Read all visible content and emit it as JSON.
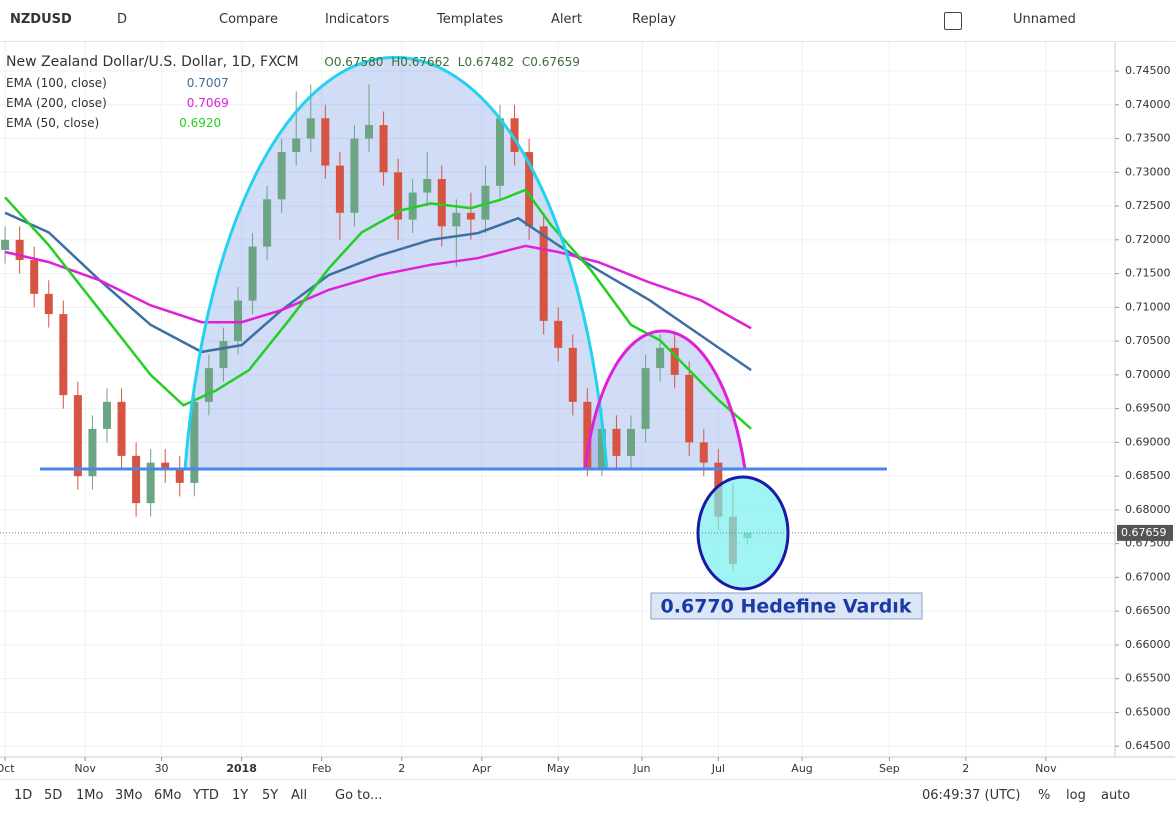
{
  "toolbar": {
    "symbol": "NZDUSD",
    "interval": "D",
    "items": [
      "Compare",
      "Indicators",
      "Templates",
      "Alert",
      "Replay"
    ],
    "layout": "Unnamed"
  },
  "chart_data": {
    "type": "candlestick",
    "title": "New Zealand Dollar/U.S. Dollar, 1D, FXCM",
    "ohlc_labels": [
      "O0.67580",
      "H0.67662",
      "L0.67482",
      "C0.67659"
    ],
    "annotation": "0.6770 Hedefine Vardık",
    "up_color": "#6ba583",
    "down_color": "#d75442",
    "grid": true,
    "xlim": [
      -1.4,
      305
    ],
    "ylim": [
      0.6434,
      0.7493
    ],
    "xticks": [
      {
        "value": 0,
        "label": "Oct"
      },
      {
        "value": 22,
        "label": "Nov"
      },
      {
        "value": 43,
        "label": "30"
      },
      {
        "value": 65,
        "label": "2018"
      },
      {
        "value": 87,
        "label": "Feb"
      },
      {
        "value": 109,
        "label": "2"
      },
      {
        "value": 131,
        "label": "Apr"
      },
      {
        "value": 152,
        "label": "May"
      },
      {
        "value": 175,
        "label": "Jun"
      },
      {
        "value": 196,
        "label": "Jul"
      },
      {
        "value": 219,
        "label": "Aug"
      },
      {
        "value": 243,
        "label": "Sep"
      },
      {
        "value": 264,
        "label": "2"
      },
      {
        "value": 286,
        "label": "Nov"
      }
    ],
    "yticks": [
      {
        "value": 0.645,
        "label": "0.64500"
      },
      {
        "value": 0.65,
        "label": "0.65000"
      },
      {
        "value": 0.655,
        "label": "0.65500"
      },
      {
        "value": 0.66,
        "label": "0.66000"
      },
      {
        "value": 0.665,
        "label": "0.66500"
      },
      {
        "value": 0.67,
        "label": "0.67000"
      },
      {
        "value": 0.675,
        "label": "0.67500"
      },
      {
        "value": 0.68,
        "label": "0.68000"
      },
      {
        "value": 0.685,
        "label": "0.68500"
      },
      {
        "value": 0.69,
        "label": "0.69000"
      },
      {
        "value": 0.695,
        "label": "0.69500"
      },
      {
        "value": 0.7,
        "label": "0.70000"
      },
      {
        "value": 0.705,
        "label": "0.70500"
      },
      {
        "value": 0.71,
        "label": "0.71000"
      },
      {
        "value": 0.715,
        "label": "0.71500"
      },
      {
        "value": 0.72,
        "label": "0.72000"
      },
      {
        "value": 0.725,
        "label": "0.72500"
      },
      {
        "value": 0.73,
        "label": "0.73000"
      },
      {
        "value": 0.735,
        "label": "0.73500"
      },
      {
        "value": 0.74,
        "label": "0.74000"
      },
      {
        "value": 0.745,
        "label": "0.74500"
      }
    ],
    "last_price": {
      "value": 0.67659,
      "label": "0.67659"
    },
    "x": [
      0,
      4,
      8,
      12,
      16,
      20,
      24,
      28,
      32,
      36,
      40,
      44,
      48,
      52,
      56,
      60,
      64,
      68,
      72,
      76,
      80,
      84,
      88,
      92,
      96,
      100,
      104,
      108,
      112,
      116,
      120,
      124,
      128,
      132,
      136,
      140,
      144,
      148,
      152,
      156,
      160,
      164,
      168,
      172,
      176,
      180,
      184,
      188,
      192,
      196,
      200,
      204
    ],
    "open": [
      0.7185,
      0.72,
      0.717,
      0.712,
      0.709,
      0.697,
      0.685,
      0.692,
      0.696,
      0.688,
      0.681,
      0.687,
      0.686,
      0.684,
      0.696,
      0.701,
      0.705,
      0.711,
      0.719,
      0.726,
      0.733,
      0.735,
      0.738,
      0.731,
      0.724,
      0.735,
      0.737,
      0.73,
      0.723,
      0.727,
      0.729,
      0.722,
      0.724,
      0.723,
      0.728,
      0.738,
      0.733,
      0.722,
      0.708,
      0.704,
      0.696,
      0.686,
      0.692,
      0.688,
      0.692,
      0.701,
      0.704,
      0.7,
      0.69,
      0.687,
      0.679,
      0.6758
    ],
    "high": [
      0.722,
      0.722,
      0.719,
      0.714,
      0.711,
      0.699,
      0.694,
      0.698,
      0.698,
      0.69,
      0.689,
      0.689,
      0.688,
      0.698,
      0.703,
      0.707,
      0.713,
      0.721,
      0.728,
      0.735,
      0.742,
      0.743,
      0.74,
      0.733,
      0.737,
      0.743,
      0.739,
      0.732,
      0.729,
      0.733,
      0.731,
      0.726,
      0.727,
      0.731,
      0.74,
      0.74,
      0.735,
      0.724,
      0.71,
      0.706,
      0.698,
      0.695,
      0.694,
      0.694,
      0.703,
      0.706,
      0.706,
      0.702,
      0.692,
      0.689,
      0.684,
      0.67662
    ],
    "low": [
      0.7165,
      0.715,
      0.71,
      0.707,
      0.695,
      0.683,
      0.683,
      0.69,
      0.686,
      0.679,
      0.679,
      0.684,
      0.682,
      0.682,
      0.694,
      0.699,
      0.703,
      0.709,
      0.717,
      0.724,
      0.731,
      0.733,
      0.729,
      0.72,
      0.722,
      0.733,
      0.728,
      0.72,
      0.721,
      0.725,
      0.719,
      0.716,
      0.72,
      0.721,
      0.726,
      0.731,
      0.72,
      0.706,
      0.702,
      0.694,
      0.685,
      0.685,
      0.686,
      0.686,
      0.69,
      0.699,
      0.698,
      0.688,
      0.685,
      0.677,
      0.671,
      0.67482
    ],
    "close": [
      0.72,
      0.717,
      0.712,
      0.709,
      0.697,
      0.685,
      0.692,
      0.696,
      0.688,
      0.681,
      0.687,
      0.686,
      0.684,
      0.696,
      0.701,
      0.705,
      0.711,
      0.719,
      0.726,
      0.733,
      0.735,
      0.738,
      0.731,
      0.724,
      0.735,
      0.737,
      0.73,
      0.723,
      0.727,
      0.729,
      0.722,
      0.724,
      0.723,
      0.728,
      0.738,
      0.733,
      0.722,
      0.708,
      0.704,
      0.696,
      0.686,
      0.692,
      0.688,
      0.692,
      0.701,
      0.704,
      0.7,
      0.69,
      0.687,
      0.679,
      0.672,
      0.67659
    ],
    "series": [
      {
        "name": "EMA (100, close)",
        "value_label": "0.7007",
        "color": "#3d6fa0",
        "x": [
          0,
          12,
          26,
          40,
          54,
          65,
          76,
          89,
          103,
          117,
          130,
          141,
          152,
          163,
          177,
          191,
          205
        ],
        "values": [
          0.724,
          0.7211,
          0.714,
          0.7074,
          0.7034,
          0.7044,
          0.7096,
          0.7148,
          0.7177,
          0.72,
          0.721,
          0.7232,
          0.7192,
          0.7155,
          0.7111,
          0.7059,
          0.7007
        ]
      },
      {
        "name": "EMA (200, close)",
        "value_label": "0.7069",
        "color": "#e020d8",
        "x": [
          0,
          12,
          26,
          40,
          54,
          65,
          76,
          89,
          103,
          117,
          130,
          143,
          152,
          163,
          177,
          191,
          205
        ],
        "values": [
          0.7182,
          0.7167,
          0.714,
          0.7103,
          0.7078,
          0.7078,
          0.7096,
          0.7126,
          0.7148,
          0.7163,
          0.7173,
          0.7191,
          0.7182,
          0.7167,
          0.7137,
          0.7111,
          0.7069
        ]
      },
      {
        "name": "EMA (50, close)",
        "value_label": "0.6920",
        "color": "#22d022",
        "x": [
          0,
          12,
          26,
          40,
          49,
          58,
          67,
          78,
          89,
          98,
          109,
          117,
          128,
          136,
          143,
          150,
          161,
          172,
          180,
          188,
          196,
          205
        ],
        "values": [
          0.7263,
          0.7192,
          0.7096,
          0.7,
          0.6955,
          0.6977,
          0.7007,
          0.7081,
          0.7158,
          0.7211,
          0.7244,
          0.7254,
          0.7247,
          0.7259,
          0.7274,
          0.7222,
          0.7155,
          0.7074,
          0.7051,
          0.7007,
          0.6963,
          0.692
        ]
      }
    ]
  },
  "bottom_bar": {
    "ranges": [
      "1D",
      "5D",
      "1Mo",
      "3Mo",
      "6Mo",
      "YTD",
      "1Y",
      "5Y",
      "All"
    ],
    "goto": "Go to...",
    "clock": "06:49:37 (UTC)",
    "options": [
      "%",
      "log",
      "auto"
    ]
  }
}
